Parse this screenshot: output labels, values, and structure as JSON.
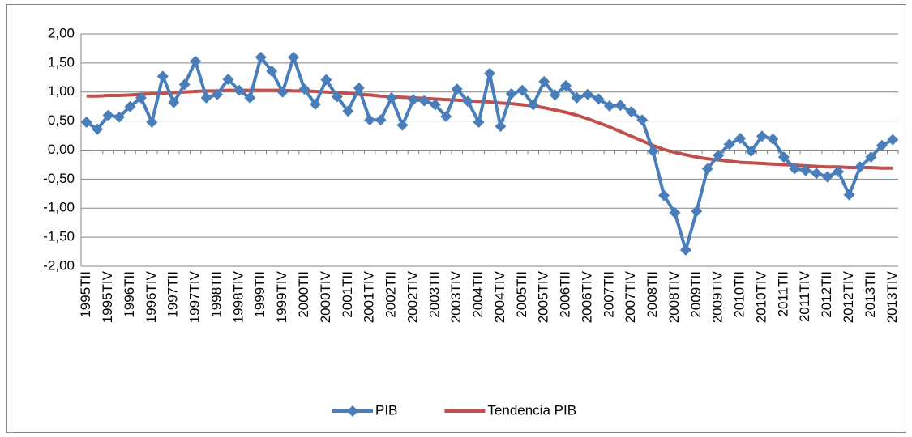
{
  "chart_data": {
    "type": "line",
    "categories": [
      "1995TII",
      null,
      "1995TIV",
      null,
      "1996TII",
      null,
      "1996TIV",
      null,
      "1997TII",
      null,
      "1997TIV",
      null,
      "1998TII",
      null,
      "1998TIV",
      null,
      "1999TII",
      null,
      "1999TIV",
      null,
      "2000TII",
      null,
      "2000TIV",
      null,
      "2001TII",
      null,
      "2001TIV",
      null,
      "2002TII",
      null,
      "2002TIV",
      null,
      "2003TII",
      null,
      "2003TIV",
      null,
      "2004TII",
      null,
      "2004TIV",
      null,
      "2005TII",
      null,
      "2005TIV",
      null,
      "2006TII",
      null,
      "2006TIV",
      null,
      "2007TII",
      null,
      "2007TIV",
      null,
      "2008TII",
      null,
      "2008TIV",
      null,
      "2009TII",
      null,
      "2009TIV",
      null,
      "2010TII",
      null,
      "2010TIV",
      null,
      "2011TII",
      null,
      "2011TIV",
      null,
      "2012TII",
      null,
      "2012TIV",
      null,
      "2013TII",
      null,
      "2013TIV"
    ],
    "series": [
      {
        "name": "PIB",
        "color": "#4a7ebb",
        "marker": "diamond",
        "values": [
          0.48,
          0.36,
          0.6,
          0.57,
          0.75,
          0.9,
          0.48,
          1.27,
          0.82,
          1.13,
          1.53,
          0.9,
          0.96,
          1.22,
          1.03,
          0.9,
          1.6,
          1.36,
          1.0,
          1.6,
          1.05,
          0.79,
          1.21,
          0.92,
          0.67,
          1.07,
          0.52,
          0.52,
          0.9,
          0.43,
          0.87,
          0.85,
          0.78,
          0.58,
          1.05,
          0.84,
          0.48,
          1.32,
          0.41,
          0.97,
          1.03,
          0.78,
          1.18,
          0.95,
          1.11,
          0.9,
          0.96,
          0.88,
          0.76,
          0.77,
          0.66,
          0.52,
          -0.02,
          -0.78,
          -1.08,
          -1.72,
          -1.05,
          -0.32,
          -0.09,
          0.1,
          0.2,
          -0.02,
          0.24,
          0.19,
          -0.12,
          -0.32,
          -0.35,
          -0.4,
          -0.46,
          -0.37,
          -0.77,
          -0.29,
          -0.12,
          0.08,
          0.18
        ]
      },
      {
        "name": "Tendencia PIB",
        "color": "#c0504d",
        "values": [
          0.93,
          0.93,
          0.94,
          0.94,
          0.95,
          0.96,
          0.97,
          0.98,
          0.99,
          1.0,
          1.01,
          1.02,
          1.02,
          1.03,
          1.03,
          1.03,
          1.03,
          1.03,
          1.03,
          1.02,
          1.02,
          1.01,
          1.0,
          0.99,
          0.98,
          0.96,
          0.95,
          0.93,
          0.92,
          0.91,
          0.9,
          0.89,
          0.88,
          0.87,
          0.86,
          0.85,
          0.84,
          0.83,
          0.81,
          0.8,
          0.78,
          0.76,
          0.73,
          0.69,
          0.65,
          0.6,
          0.54,
          0.47,
          0.4,
          0.32,
          0.24,
          0.16,
          0.08,
          0.01,
          -0.04,
          -0.08,
          -0.12,
          -0.15,
          -0.17,
          -0.19,
          -0.21,
          -0.22,
          -0.23,
          -0.24,
          -0.25,
          -0.26,
          -0.27,
          -0.28,
          -0.29,
          -0.29,
          -0.3,
          -0.3,
          -0.3,
          -0.31,
          -0.31
        ]
      }
    ],
    "ylim": [
      -2,
      2
    ],
    "yticks": [
      {
        "value": -2,
        "label": "-2,00"
      },
      {
        "value": -1.5,
        "label": "-1,50"
      },
      {
        "value": -1,
        "label": "-1,00"
      },
      {
        "value": -0.5,
        "label": "-0,50"
      },
      {
        "value": 0,
        "label": "0,00"
      },
      {
        "value": 0.5,
        "label": "0,50"
      },
      {
        "value": 1,
        "label": "1,00"
      },
      {
        "value": 1.5,
        "label": "1,50"
      },
      {
        "value": 2,
        "label": "2,00"
      }
    ],
    "grid": true,
    "legend": "bottom"
  }
}
